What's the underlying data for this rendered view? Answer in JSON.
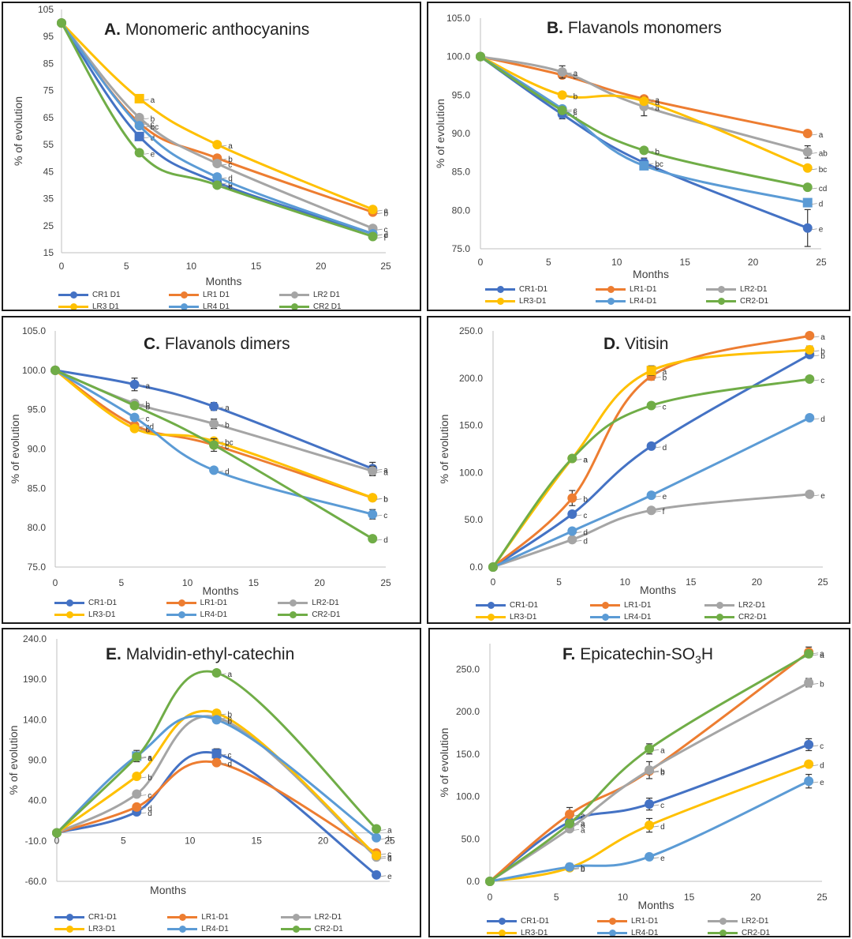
{
  "series_names_space": [
    "CR1 D1",
    "LR1 D1",
    "LR2 D1",
    "LR3 D1",
    "LR4 D1",
    "CR2 D1"
  ],
  "series_names_dash": [
    "CR1-D1",
    "LR1-D1",
    "LR2-D1",
    "LR3-D1",
    "LR4-D1",
    "CR2-D1"
  ],
  "colors": {
    "CR1": "#4472c4",
    "LR1": "#ed7d31",
    "LR2": "#a5a5a5",
    "LR3": "#ffc000",
    "LR4": "#5b9bd5",
    "CR2": "#70ad47"
  },
  "chart_data": [
    {
      "id": "A",
      "type": "line",
      "letter": "A.",
      "title": "Monomeric anthocyanins",
      "xlabel": "Months",
      "ylabel": "% of evolution",
      "xlim": [
        0,
        25
      ],
      "xticks": [
        0,
        5,
        10,
        15,
        20,
        25
      ],
      "ylim": [
        15,
        105
      ],
      "yticks": [
        15,
        25,
        35,
        45,
        55,
        65,
        75,
        85,
        95,
        105
      ],
      "ytick_labels": [
        "15",
        "25",
        "35",
        "45",
        "55",
        "65",
        "75",
        "85",
        "95",
        "105"
      ],
      "x": [
        0,
        6,
        12,
        24
      ],
      "series": [
        {
          "name": "CR1 D1",
          "values": [
            100,
            58,
            41,
            22
          ],
          "letters": [
            "",
            "d",
            "d",
            "d"
          ],
          "markers": [
            "circle",
            "square",
            "circle",
            "circle"
          ]
        },
        {
          "name": "LR1 D1",
          "values": [
            100,
            63,
            50,
            30
          ],
          "letters": [
            "",
            "c",
            "b",
            "b"
          ],
          "markers": [
            "circle",
            "circle",
            "circle",
            "circle"
          ]
        },
        {
          "name": "LR2 D1",
          "values": [
            100,
            65,
            48,
            24
          ],
          "letters": [
            "",
            "b",
            "c",
            "c"
          ],
          "markers": [
            "circle",
            "circle",
            "circle",
            "circle"
          ]
        },
        {
          "name": "LR3 D1",
          "values": [
            100,
            72,
            55,
            31
          ],
          "letters": [
            "",
            "a",
            "a",
            "a"
          ],
          "markers": [
            "circle",
            "square",
            "circle",
            "circle"
          ]
        },
        {
          "name": "LR4 D1",
          "values": [
            100,
            62,
            43,
            22
          ],
          "letters": [
            "",
            "bc",
            "d",
            "e"
          ],
          "markers": [
            "circle",
            "circle",
            "circle",
            "circle"
          ]
        },
        {
          "name": "CR2 D1",
          "values": [
            100,
            52,
            40,
            21
          ],
          "letters": [
            "",
            "e",
            "e",
            "f"
          ],
          "markers": [
            "circle",
            "circle",
            "circle",
            "circle"
          ]
        }
      ]
    },
    {
      "id": "B",
      "type": "line",
      "letter": "B.",
      "title": "Flavanols monomers",
      "xlabel": "Months",
      "ylabel": "% of evolution",
      "xlim": [
        0,
        25
      ],
      "xticks": [
        0,
        5,
        10,
        15,
        20,
        25
      ],
      "ylim": [
        75,
        105
      ],
      "yticks": [
        75,
        80,
        85,
        90,
        95,
        100,
        105
      ],
      "ytick_labels": [
        "75.0",
        "80.0",
        "85.0",
        "90.0",
        "95.0",
        "100.0",
        "105.0"
      ],
      "x": [
        0,
        6,
        12,
        24
      ],
      "series": [
        {
          "name": "CR1-D1",
          "values": [
            100,
            92.5,
            86.2,
            77.7
          ],
          "letters": [
            "",
            "c",
            "bc",
            "e"
          ],
          "errors": [
            0,
            0.6,
            0.6,
            2.4
          ],
          "markers": [
            "circle",
            "circle",
            "circle",
            "circle"
          ]
        },
        {
          "name": "LR1-D1",
          "values": [
            100,
            97.6,
            94.5,
            90
          ],
          "letters": [
            "",
            "a",
            "a",
            "a"
          ],
          "markers": [
            "circle",
            "circle",
            "circle",
            "circle"
          ]
        },
        {
          "name": "LR2-D1",
          "values": [
            100,
            98,
            93.5,
            87.6
          ],
          "letters": [
            "",
            "a",
            "a",
            "ab"
          ],
          "errors": [
            0,
            0.8,
            1.2,
            0.8
          ],
          "markers": [
            "circle",
            "circle",
            "circle",
            "circle"
          ]
        },
        {
          "name": "LR3-D1",
          "values": [
            100,
            95,
            94.2,
            85.5
          ],
          "letters": [
            "",
            "b",
            "a",
            "bc"
          ],
          "markers": [
            "circle",
            "circle",
            "circle",
            "circle"
          ]
        },
        {
          "name": "LR4-D1",
          "values": [
            100,
            93.2,
            85.8,
            81
          ],
          "letters": [
            "",
            "c",
            "c",
            "d"
          ],
          "markers": [
            "circle",
            "circle",
            "square",
            "square"
          ]
        },
        {
          "name": "CR2-D1",
          "values": [
            100,
            93,
            87.8,
            83
          ],
          "letters": [
            "",
            "c",
            "b",
            "cd"
          ],
          "markers": [
            "circle",
            "circle",
            "circle",
            "circle"
          ]
        }
      ]
    },
    {
      "id": "C",
      "type": "line",
      "letter": "C.",
      "title": "Flavanols dimers",
      "xlabel": "Months",
      "ylabel": "% of evolution",
      "xlim": [
        0,
        25
      ],
      "xticks": [
        0,
        5,
        10,
        15,
        20,
        25
      ],
      "ylim": [
        75,
        105
      ],
      "yticks": [
        75,
        80,
        85,
        90,
        95,
        100,
        105
      ],
      "ytick_labels": [
        "75.0",
        "80.0",
        "85.0",
        "90.0",
        "95.0",
        "100.0",
        "105.0"
      ],
      "x": [
        0,
        6,
        12,
        24
      ],
      "series": [
        {
          "name": "CR1-D1",
          "values": [
            100,
            98.2,
            95.4,
            87.5
          ],
          "letters": [
            "",
            "a",
            "a",
            "a"
          ],
          "errors": [
            0,
            0.8,
            0.5,
            0.8
          ],
          "markers": [
            "circle",
            "circle",
            "circle",
            "circle"
          ]
        },
        {
          "name": "LR1-D1",
          "values": [
            100,
            93,
            90.5,
            83.8
          ],
          "letters": [
            "",
            "cd",
            "c",
            "b"
          ],
          "markers": [
            "circle",
            "circle",
            "circle",
            "circle"
          ]
        },
        {
          "name": "LR2-D1",
          "values": [
            100,
            95.8,
            93.2,
            87.2
          ],
          "letters": [
            "",
            "b",
            "b",
            "a"
          ],
          "errors": [
            0,
            0.4,
            0.6,
            0.6
          ],
          "markers": [
            "circle",
            "circle",
            "circle",
            "circle"
          ]
        },
        {
          "name": "LR3-D1",
          "values": [
            100,
            92.6,
            91,
            83.8
          ],
          "letters": [
            "",
            "d",
            "bc",
            "b"
          ],
          "markers": [
            "circle",
            "circle",
            "circle",
            "circle"
          ]
        },
        {
          "name": "LR4-D1",
          "values": [
            100,
            94,
            87.3,
            81.7
          ],
          "letters": [
            "",
            "c",
            "d",
            "c"
          ],
          "errors": [
            0,
            0,
            0,
            0.6
          ],
          "markers": [
            "circle",
            "circle",
            "circle",
            "circle"
          ]
        },
        {
          "name": "CR2-D1",
          "values": [
            100,
            95.5,
            90.5,
            78.6
          ],
          "letters": [
            "",
            "b",
            "c",
            "d"
          ],
          "errors": [
            0,
            0,
            0.8,
            0
          ],
          "markers": [
            "circle",
            "circle",
            "circle",
            "circle"
          ]
        }
      ]
    },
    {
      "id": "D",
      "type": "line",
      "letter": "D.",
      "title": "Vitisin",
      "xlabel": "Months",
      "ylabel": "% of evolution",
      "xlim": [
        0,
        25
      ],
      "xticks": [
        0,
        5,
        10,
        15,
        20,
        25
      ],
      "ylim": [
        0,
        250
      ],
      "yticks": [
        0,
        50,
        100,
        150,
        200,
        250
      ],
      "ytick_labels": [
        "0.0",
        "50.0",
        "100.0",
        "150.0",
        "200.0",
        "250.0"
      ],
      "x": [
        0,
        6,
        12,
        24
      ],
      "series": [
        {
          "name": "CR1-D1",
          "values": [
            0,
            56,
            128,
            225
          ],
          "letters": [
            "",
            "c",
            "d",
            "b"
          ],
          "markers": [
            "circle",
            "circle",
            "circle",
            "circle"
          ]
        },
        {
          "name": "LR1-D1",
          "values": [
            0,
            73,
            202,
            245
          ],
          "letters": [
            "",
            "b",
            "b",
            "a"
          ],
          "errors": [
            0,
            8,
            4,
            0
          ],
          "markers": [
            "circle",
            "circle",
            "circle",
            "circle"
          ]
        },
        {
          "name": "LR2-D1",
          "values": [
            0,
            29,
            60,
            77
          ],
          "letters": [
            "",
            "d",
            "f",
            "e"
          ],
          "markers": [
            "circle",
            "circle",
            "circle",
            "circle"
          ]
        },
        {
          "name": "LR3-D1",
          "values": [
            0,
            115,
            208,
            230
          ],
          "letters": [
            "",
            "a",
            "a",
            "b"
          ],
          "errors": [
            0,
            0,
            5,
            4
          ],
          "markers": [
            "circle",
            "circle",
            "square",
            "circle"
          ]
        },
        {
          "name": "LR4-D1",
          "values": [
            0,
            38,
            76,
            158
          ],
          "letters": [
            "",
            "d",
            "e",
            "d"
          ],
          "markers": [
            "circle",
            "circle",
            "circle",
            "circle"
          ]
        },
        {
          "name": "CR2-D1",
          "values": [
            0,
            115,
            171,
            199
          ],
          "letters": [
            "",
            "a",
            "c",
            "c"
          ],
          "markers": [
            "circle",
            "circle",
            "circle",
            "circle"
          ]
        }
      ]
    },
    {
      "id": "E",
      "type": "line",
      "letter": "E.",
      "title": "Malvidin-ethyl-catechin",
      "xlabel": "Months",
      "ylabel": "% of evolution",
      "xlim": [
        0,
        25
      ],
      "xticks": [
        0,
        5,
        10,
        15,
        20,
        25
      ],
      "ylim": [
        -60,
        240
      ],
      "yticks": [
        -60,
        -10,
        40,
        90,
        140,
        190,
        240
      ],
      "ytick_labels": [
        "-60.0",
        "-10.0",
        "40.0",
        "90.0",
        "140.0",
        "190.0",
        "240.0"
      ],
      "x": [
        0,
        6,
        12,
        24
      ],
      "series": [
        {
          "name": "CR1-D1",
          "values": [
            0,
            26,
            98,
            -52
          ],
          "letters": [
            "",
            "d",
            "c",
            "e"
          ],
          "errors": [
            0,
            0,
            6,
            0
          ],
          "markers": [
            "circle",
            "circle",
            "square",
            "circle"
          ]
        },
        {
          "name": "LR1-D1",
          "values": [
            0,
            32,
            87,
            -25
          ],
          "letters": [
            "",
            "d",
            "d",
            "c"
          ],
          "markers": [
            "circle",
            "circle",
            "circle",
            "circle"
          ]
        },
        {
          "name": "LR2-D1",
          "values": [
            0,
            48,
            143,
            -30
          ],
          "letters": [
            "",
            "c",
            "b",
            "d"
          ],
          "markers": [
            "circle",
            "circle",
            "circle",
            "circle"
          ]
        },
        {
          "name": "LR3-D1",
          "values": [
            0,
            70,
            148,
            -28
          ],
          "letters": [
            "",
            "b",
            "b",
            "c"
          ],
          "markers": [
            "circle",
            "circle",
            "circle",
            "circle"
          ]
        },
        {
          "name": "LR4-D1",
          "values": [
            0,
            95,
            140,
            -6
          ],
          "letters": [
            "",
            "a",
            "b",
            "b"
          ],
          "errors": [
            0,
            7,
            0,
            0
          ],
          "markers": [
            "circle",
            "square",
            "circle",
            "circle"
          ]
        },
        {
          "name": "CR2-D1",
          "values": [
            0,
            94,
            198,
            5
          ],
          "letters": [
            "",
            "a",
            "a",
            "a"
          ],
          "markers": [
            "circle",
            "circle",
            "circle",
            "circle"
          ]
        }
      ]
    },
    {
      "id": "F",
      "type": "line",
      "letter": "F.",
      "title": "Epicatechin-SO",
      "title_sub": "3",
      "title_end": "H",
      "xlabel": "Months",
      "ylabel": "% of evolution",
      "xlim": [
        0,
        25
      ],
      "xticks": [
        0,
        5,
        10,
        15,
        20,
        25
      ],
      "ylim": [
        0,
        280
      ],
      "yticks": [
        0,
        50,
        100,
        150,
        200,
        250
      ],
      "ytick_labels": [
        "0.0",
        "50.0",
        "100.0",
        "150.0",
        "200.0",
        "250.0"
      ],
      "x": [
        0,
        6,
        12,
        24
      ],
      "series": [
        {
          "name": "CR1-D1",
          "values": [
            0,
            70,
            91,
            161
          ],
          "letters": [
            "",
            "a",
            "c",
            "c"
          ],
          "errors": [
            0,
            0,
            7,
            7
          ],
          "markers": [
            "circle",
            "circle",
            "circle",
            "circle"
          ]
        },
        {
          "name": "LR1-D1",
          "values": [
            0,
            79,
            130,
            270
          ],
          "letters": [
            "",
            "a",
            "b",
            "a"
          ],
          "errors": [
            0,
            8,
            0,
            6
          ],
          "markers": [
            "circle",
            "circle",
            "circle",
            "circle"
          ]
        },
        {
          "name": "LR2-D1",
          "values": [
            0,
            62,
            131,
            234
          ],
          "letters": [
            "",
            "a",
            "b",
            "b"
          ],
          "errors": [
            0,
            0,
            10,
            5
          ],
          "markers": [
            "circle",
            "circle",
            "circle",
            "circle"
          ]
        },
        {
          "name": "LR3-D1",
          "values": [
            0,
            16,
            66,
            138
          ],
          "letters": [
            "",
            "b",
            "d",
            "d"
          ],
          "errors": [
            0,
            0,
            8,
            0
          ],
          "markers": [
            "circle",
            "circle",
            "circle",
            "circle"
          ]
        },
        {
          "name": "LR4-D1",
          "values": [
            0,
            17,
            29,
            118
          ],
          "letters": [
            "",
            "b",
            "e",
            "e"
          ],
          "errors": [
            0,
            4,
            0,
            8
          ],
          "markers": [
            "circle",
            "circle",
            "circle",
            "circle"
          ]
        },
        {
          "name": "CR2-D1",
          "values": [
            0,
            68,
            156,
            268
          ],
          "letters": [
            "",
            "a",
            "a",
            "a"
          ],
          "errors": [
            0,
            0,
            6,
            0
          ],
          "markers": [
            "circle",
            "circle",
            "circle",
            "circle"
          ]
        }
      ]
    }
  ]
}
